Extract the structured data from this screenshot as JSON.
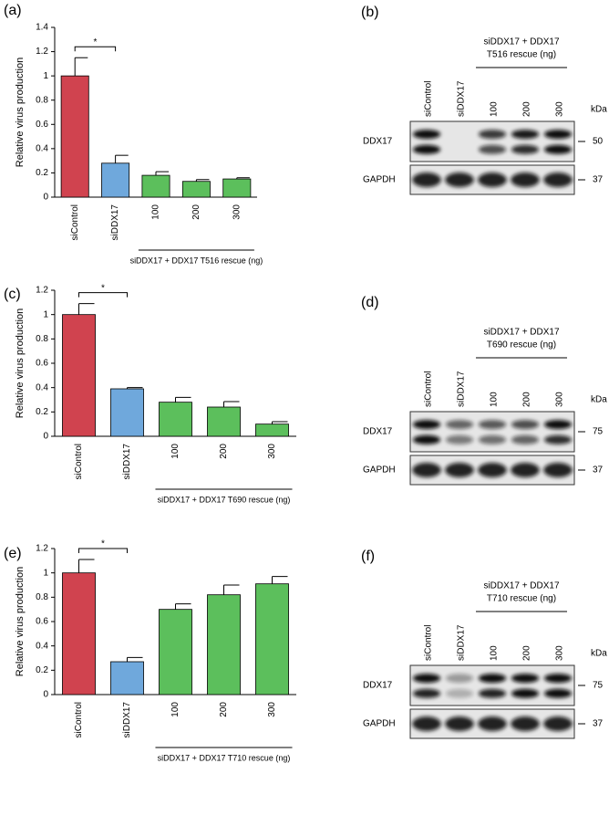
{
  "chart_data": [
    {
      "type": "bar",
      "label": "(a)",
      "y_label": "Relative virus production",
      "categories": [
        "siControl",
        "siDDX17",
        "100",
        "200",
        "300"
      ],
      "values": [
        1,
        0.28,
        0.18,
        0.13,
        0.15
      ],
      "errors": [
        0.15,
        0.065,
        0.03,
        0.015,
        0.01
      ],
      "colors": [
        "#d0434f",
        "#6fa8dc",
        "#5cbf5c",
        "#5cbf5c",
        "#5cbf5c"
      ],
      "ylim": [
        0,
        1.4
      ],
      "yticks": [
        0,
        0.2,
        0.4,
        0.6,
        0.8,
        1,
        1.2,
        1.4
      ],
      "significance": "*",
      "group_label": "siDDX17 + DDX17 T516 rescue (ng)"
    },
    {
      "type": "bar",
      "label": "(c)",
      "y_label": "Relative virus production",
      "categories": [
        "siControl",
        "siDDX17",
        "100",
        "200",
        "300"
      ],
      "values": [
        1,
        0.39,
        0.28,
        0.24,
        0.1
      ],
      "errors": [
        0.09,
        0.01,
        0.04,
        0.045,
        0.02
      ],
      "colors": [
        "#d0434f",
        "#6fa8dc",
        "#5cbf5c",
        "#5cbf5c",
        "#5cbf5c"
      ],
      "ylim": [
        0,
        1.2
      ],
      "yticks": [
        0,
        0.2,
        0.4,
        0.6,
        0.8,
        1,
        1.2
      ],
      "significance": "*",
      "group_label": "siDDX17 + DDX17 T690 rescue (ng)"
    },
    {
      "type": "bar",
      "label": "(e)",
      "y_label": "Relative virus production",
      "categories": [
        "siControl",
        "siDDX17",
        "100",
        "200",
        "300"
      ],
      "values": [
        1,
        0.27,
        0.7,
        0.82,
        0.91
      ],
      "errors": [
        0.11,
        0.035,
        0.045,
        0.08,
        0.06
      ],
      "colors": [
        "#d0434f",
        "#6fa8dc",
        "#5cbf5c",
        "#5cbf5c",
        "#5cbf5c"
      ],
      "ylim": [
        0,
        1.2
      ],
      "yticks": [
        0,
        0.2,
        0.4,
        0.6,
        0.8,
        1,
        1.2
      ],
      "significance": "*",
      "group_label": "siDDX17 + DDX17 T710 rescue (ng)"
    }
  ],
  "blots": [
    {
      "label": "(b)",
      "lanes": [
        "siControl",
        "siDDX17",
        "100",
        "200",
        "300"
      ],
      "group_label": [
        "siDDX17 + DDX17",
        "T516 rescue (ng)"
      ],
      "kda_header": "kDa",
      "rows": [
        {
          "name": "DDX17",
          "kda": "50"
        },
        {
          "name": "GAPDH",
          "kda": "37"
        }
      ]
    },
    {
      "label": "(d)",
      "lanes": [
        "siControl",
        "siDDX17",
        "100",
        "200",
        "300"
      ],
      "group_label": [
        "siDDX17 + DDX17",
        "T690 rescue (ng)"
      ],
      "kda_header": "kDa",
      "rows": [
        {
          "name": "DDX17",
          "kda": "75"
        },
        {
          "name": "GAPDH",
          "kda": "37"
        }
      ]
    },
    {
      "label": "(f)",
      "lanes": [
        "siControl",
        "siDDX17",
        "100",
        "200",
        "300"
      ],
      "group_label": [
        "siDDX17 + DDX17",
        "T710 rescue (ng)"
      ],
      "kda_header": "kDa",
      "rows": [
        {
          "name": "DDX17",
          "kda": "75"
        },
        {
          "name": "GAPDH",
          "kda": "37"
        }
      ]
    }
  ]
}
